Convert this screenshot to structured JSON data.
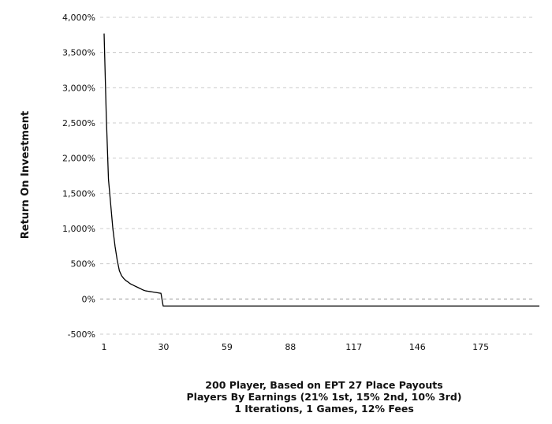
{
  "chart_data": {
    "type": "line",
    "ylabel": "Return On Investment",
    "xlabel_lines": [
      "200 Player, Based on EPT 27 Place Payouts",
      "Players By Earnings (21% 1st, 15% 2nd, 10% 3rd)",
      "1 Iterations, 1 Games, 12% Fees"
    ],
    "xlim": [
      1,
      200
    ],
    "ylim": [
      -500,
      4000
    ],
    "x_ticks": [
      1,
      30,
      59,
      88,
      117,
      146,
      175
    ],
    "x_tick_labels": [
      "1",
      "30",
      "59",
      "88",
      "117",
      "146",
      "175"
    ],
    "y_ticks": [
      -500,
      0,
      500,
      1000,
      1500,
      2000,
      2500,
      3000,
      3500,
      4000
    ],
    "y_tick_labels": [
      "-500%",
      "0%",
      "500%",
      "1,000%",
      "1,500%",
      "2,000%",
      "2,500%",
      "3,000%",
      "3,500%",
      "4,000%"
    ],
    "grid": "horizontal-dashed",
    "series": [
      {
        "color": "#000000",
        "x": [
          1,
          2,
          3,
          4,
          5,
          6,
          7,
          8,
          9,
          10,
          11,
          12,
          13,
          14,
          15,
          16,
          17,
          18,
          19,
          20,
          21,
          22,
          23,
          24,
          25,
          26,
          27,
          28,
          200
        ],
        "y": [
          3770,
          2600,
          1700,
          1350,
          1000,
          750,
          550,
          400,
          330,
          290,
          260,
          240,
          215,
          200,
          185,
          170,
          155,
          140,
          125,
          115,
          110,
          105,
          100,
          95,
          90,
          85,
          80,
          -100,
          -100
        ]
      }
    ]
  }
}
